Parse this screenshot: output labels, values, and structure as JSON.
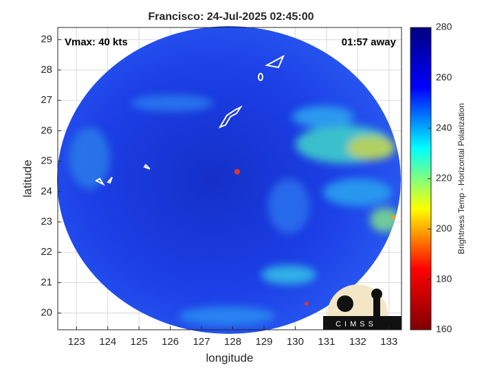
{
  "chart_data": {
    "type": "map",
    "title": "Francisco: 24-Jul-2025 02:45:00",
    "xlabel": "longitude",
    "ylabel": "latitude",
    "annotations": [
      "Vmax: 40 kts",
      "01:57 away"
    ],
    "xlim": [
      122.4,
      133.4
    ],
    "xticks": [
      123,
      124,
      125,
      126,
      127,
      128,
      129,
      130,
      131,
      132,
      133
    ],
    "ylim": [
      19.45,
      29.4
    ],
    "yticks": [
      20,
      21,
      22,
      23,
      24,
      25,
      26,
      27,
      28,
      29
    ],
    "grid": true,
    "colorbar": {
      "label": "Brightness Temp - Horizontal Polarization",
      "clim": [
        160,
        280
      ],
      "ticks": [
        160,
        180,
        200,
        220,
        240,
        260,
        280
      ],
      "colors": [
        "#7f0000",
        "#ff0000",
        "#ffff00",
        "#00ffff",
        "#0000ff",
        "#00007f"
      ]
    },
    "logo": "CIMSS"
  }
}
